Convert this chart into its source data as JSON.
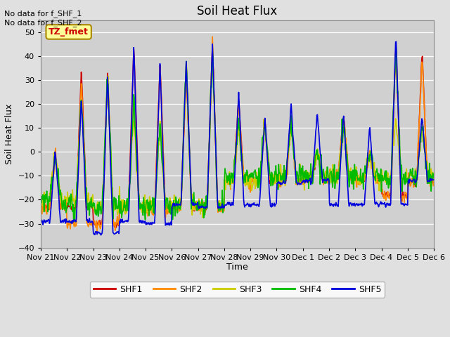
{
  "title": "Soil Heat Flux",
  "ylabel": "Soil Heat Flux",
  "xlabel": "Time",
  "annotation_text": "No data for f_SHF_1\nNo data for f_SHF_2",
  "legend_label": "TZ_fmet",
  "series_labels": [
    "SHF1",
    "SHF2",
    "SHF3",
    "SHF4",
    "SHF5"
  ],
  "series_colors": [
    "#cc0000",
    "#ff8800",
    "#cccc00",
    "#00bb00",
    "#0000dd"
  ],
  "ylim": [
    -40,
    55
  ],
  "yticks": [
    -40,
    -30,
    -20,
    -10,
    0,
    10,
    20,
    30,
    40,
    50
  ],
  "background_color": "#e0e0e0",
  "plot_bg_color": "#d0d0d0",
  "tick_labels": [
    "Nov 21",
    "Nov 22",
    "Nov 23",
    "Nov 24",
    "Nov 25",
    "Nov 26",
    "Nov 27",
    "Nov 28",
    "Nov 29",
    "Nov 30",
    "Dec 1",
    "Dec 2",
    "Dec 3",
    "Dec 4",
    "Dec 5",
    "Dec 6"
  ],
  "n_days": 15,
  "pts_per_day": 48,
  "title_fontsize": 12,
  "label_fontsize": 9,
  "tick_fontsize": 8,
  "figsize": [
    6.4,
    4.8
  ],
  "dpi": 100
}
